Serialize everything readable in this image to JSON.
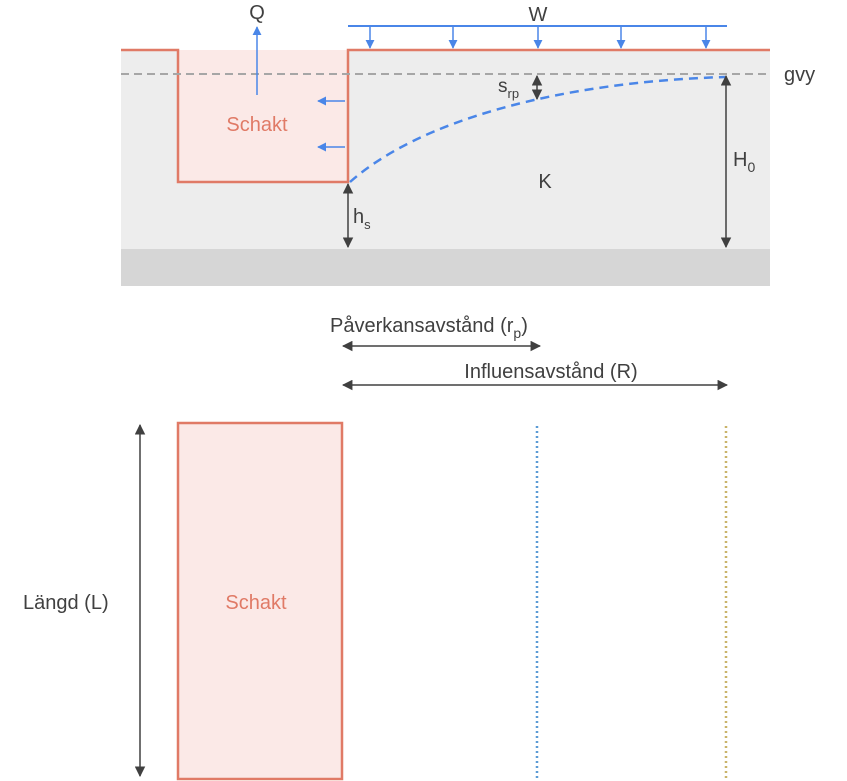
{
  "labels": {
    "q": "Q",
    "w": "W",
    "gvy": "gvy",
    "s": "s",
    "s_sub": "rp",
    "schakt_section": "Schakt",
    "k": "K",
    "h0": "H",
    "h0_sub": "0",
    "hs": "h",
    "hs_sub": "s",
    "paverkan": "Påverkansavstånd (r",
    "paverkan_sub": "p",
    "paverkan_close": ")",
    "influens": "Influensavstånd (R)",
    "langd": "Längd (L)",
    "schakt_plan": "Schakt"
  },
  "colors": {
    "schakt_stroke": "#e07a66",
    "schakt_fill": "#fbe9e7",
    "soil": "#ededed",
    "bedrock": "#d6d6d6",
    "load_arrows": "#4a86e8",
    "dimension": "#404040",
    "groundwater": "#a6a6a6",
    "rp_line": "#5b9bd5",
    "r_line": "#c9b46a"
  }
}
